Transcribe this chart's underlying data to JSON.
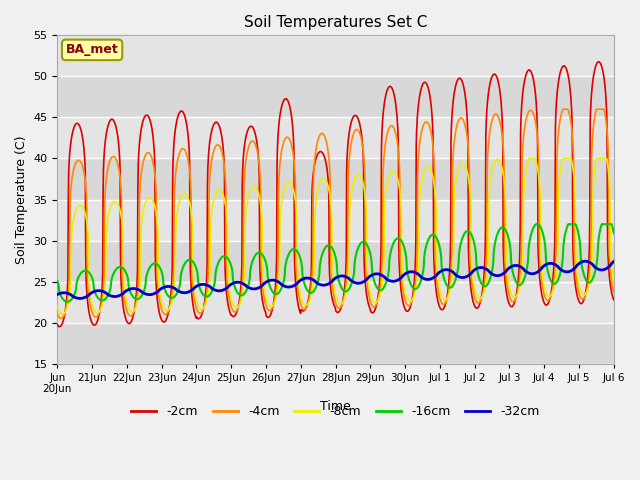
{
  "title": "Soil Temperatures Set C",
  "xlabel": "Time",
  "ylabel": "Soil Temperature (C)",
  "ylim": [
    15,
    55
  ],
  "yticks": [
    15,
    20,
    25,
    30,
    35,
    40,
    45,
    50,
    55
  ],
  "series": [
    {
      "label": "-2cm",
      "color": "#dd0000",
      "lw": 1.2
    },
    {
      "label": "-4cm",
      "color": "#ff8800",
      "lw": 1.2
    },
    {
      "label": "-8cm",
      "color": "#eeee00",
      "lw": 1.2
    },
    {
      "label": "-16cm",
      "color": "#00cc00",
      "lw": 1.5
    },
    {
      "label": "-32cm",
      "color": "#0000cc",
      "lw": 2.0
    }
  ],
  "annotation_text": "BA_met",
  "bg_bands": [
    {
      "ymin": 55,
      "ymax": 60,
      "color": "#d8d8d8"
    },
    {
      "ymin": 50,
      "ymax": 55,
      "color": "#d8d8d8"
    },
    {
      "ymin": 45,
      "ymax": 50,
      "color": "#e8e8e8"
    },
    {
      "ymin": 40,
      "ymax": 45,
      "color": "#d8d8d8"
    },
    {
      "ymin": 35,
      "ymax": 40,
      "color": "#e8e8e8"
    },
    {
      "ymin": 30,
      "ymax": 35,
      "color": "#d8d8d8"
    },
    {
      "ymin": 25,
      "ymax": 30,
      "color": "#e8e8e8"
    },
    {
      "ymin": 20,
      "ymax": 25,
      "color": "#d8d8d8"
    },
    {
      "ymin": 15,
      "ymax": 20,
      "color": "#e8e8e8"
    }
  ]
}
